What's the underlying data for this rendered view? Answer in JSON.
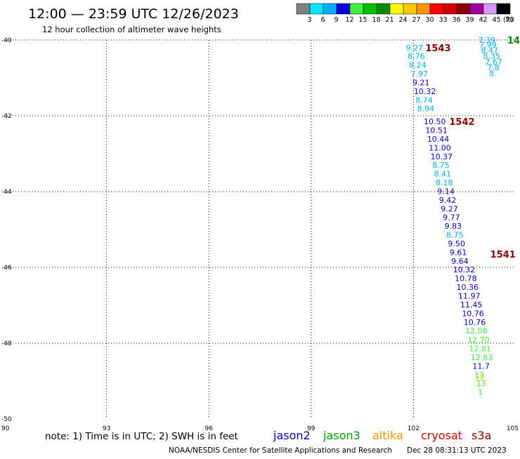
{
  "header": {
    "title": "12:00 — 23:59 UTC 12/26/2023",
    "subtitle": "12 hour collection of altimeter wave heights"
  },
  "colorbar": {
    "unit": "(ft)",
    "bins": [
      {
        "label": "3",
        "color": "#808080"
      },
      {
        "label": "6",
        "color": "#00e5ff"
      },
      {
        "label": "9",
        "color": "#00b0ff"
      },
      {
        "label": "12",
        "color": "#0000e0"
      },
      {
        "label": "15",
        "color": "#40f040"
      },
      {
        "label": "18",
        "color": "#00c000"
      },
      {
        "label": "21",
        "color": "#008c00"
      },
      {
        "label": "24",
        "color": "#f8f800"
      },
      {
        "label": "27",
        "color": "#ffc800"
      },
      {
        "label": "30",
        "color": "#ff9600"
      },
      {
        "label": "33",
        "color": "#ff0000"
      },
      {
        "label": "36",
        "color": "#d00000"
      },
      {
        "label": "39",
        "color": "#8c0000"
      },
      {
        "label": "42",
        "color": "#a000a0"
      },
      {
        "label": "45",
        "color": "#d896ff"
      },
      {
        "label": "70",
        "color": "#000000"
      }
    ]
  },
  "note": "note: 1) Time is in UTC; 2) SWH is in feet",
  "satellites": [
    {
      "name": "jason2",
      "color": "#0000cc"
    },
    {
      "name": "jason3",
      "color": "#00a000"
    },
    {
      "name": "altika",
      "color": "#ff9600"
    },
    {
      "name": "cryosat",
      "color": "#dd0000"
    },
    {
      "name": "s3a",
      "color": "#8c0000"
    }
  ],
  "footer": {
    "credit": "NOAA/NESDIS Center for Satellite Applications and Research",
    "timestamp": "Dec 28 08:31:13 UTC 2023"
  },
  "chart_data": {
    "type": "scatter",
    "xlim": [
      90,
      105
    ],
    "ylim": [
      -50,
      -40
    ],
    "x_ticks": [
      "90",
      "93",
      "96",
      "99",
      "102",
      "105"
    ],
    "y_ticks": [
      "-40",
      "-42",
      "-44",
      "-46",
      "-48",
      "-50"
    ],
    "grid": true,
    "time_labels": [
      {
        "text": "1543",
        "x": 102.35,
        "y": -40.2,
        "color": "#8c0000"
      },
      {
        "text": "1542",
        "x": 103.05,
        "y": -42.15,
        "color": "#8c0000"
      },
      {
        "text": "1541",
        "x": 104.25,
        "y": -45.65,
        "color": "#8c0000"
      },
      {
        "text": "14",
        "x": 104.75,
        "y": -40.0,
        "color": "#008c00"
      }
    ],
    "points": [
      {
        "text": "9.27",
        "x": 101.78,
        "y": -40.2,
        "color": "#00b0ff"
      },
      {
        "text": "8.76",
        "x": 101.83,
        "y": -40.43,
        "color": "#00b0ff"
      },
      {
        "text": "8.24",
        "x": 101.87,
        "y": -40.66,
        "color": "#00b0ff"
      },
      {
        "text": "7.97",
        "x": 101.92,
        "y": -40.89,
        "color": "#00b0ff"
      },
      {
        "text": "9.21",
        "x": 101.97,
        "y": -41.12,
        "color": "#0000e0"
      },
      {
        "text": "10.32",
        "x": 102.01,
        "y": -41.35,
        "color": "#0000e0"
      },
      {
        "text": "8.74",
        "x": 102.06,
        "y": -41.58,
        "color": "#00b0ff"
      },
      {
        "text": "8.94",
        "x": 102.11,
        "y": -41.81,
        "color": "#00b0ff"
      },
      {
        "text": "10.50",
        "x": 102.3,
        "y": -42.15,
        "color": "#0000e0"
      },
      {
        "text": "10.51",
        "x": 102.35,
        "y": -42.38,
        "color": "#0000e0"
      },
      {
        "text": "10.44",
        "x": 102.4,
        "y": -42.61,
        "color": "#0000e0"
      },
      {
        "text": "11.00",
        "x": 102.45,
        "y": -42.84,
        "color": "#0000e0"
      },
      {
        "text": "10.37",
        "x": 102.5,
        "y": -43.07,
        "color": "#0000e0"
      },
      {
        "text": "8.75",
        "x": 102.55,
        "y": -43.3,
        "color": "#00b0ff"
      },
      {
        "text": "8.41",
        "x": 102.6,
        "y": -43.53,
        "color": "#00b0ff"
      },
      {
        "text": "8.18",
        "x": 102.65,
        "y": -43.76,
        "color": "#00b0ff"
      },
      {
        "text": "9.14",
        "x": 102.7,
        "y": -43.99,
        "color": "#0000e0"
      },
      {
        "text": "9.42",
        "x": 102.75,
        "y": -44.22,
        "color": "#0000e0"
      },
      {
        "text": "9.27",
        "x": 102.8,
        "y": -44.45,
        "color": "#0000e0"
      },
      {
        "text": "9.77",
        "x": 102.86,
        "y": -44.68,
        "color": "#0000e0"
      },
      {
        "text": "9.83",
        "x": 102.91,
        "y": -44.91,
        "color": "#0000e0"
      },
      {
        "text": "8.75",
        "x": 102.96,
        "y": -45.14,
        "color": "#00b0ff"
      },
      {
        "text": "9.50",
        "x": 103.01,
        "y": -45.37,
        "color": "#0000e0"
      },
      {
        "text": "9.61",
        "x": 103.06,
        "y": -45.6,
        "color": "#0000e0"
      },
      {
        "text": "9.64",
        "x": 103.11,
        "y": -45.83,
        "color": "#0000e0"
      },
      {
        "text": "10.32",
        "x": 103.16,
        "y": -46.06,
        "color": "#0000e0"
      },
      {
        "text": "10.78",
        "x": 103.21,
        "y": -46.29,
        "color": "#0000e0"
      },
      {
        "text": "10.36",
        "x": 103.26,
        "y": -46.52,
        "color": "#0000e0"
      },
      {
        "text": "11.97",
        "x": 103.31,
        "y": -46.75,
        "color": "#0000e0"
      },
      {
        "text": "11.45",
        "x": 103.37,
        "y": -46.98,
        "color": "#0000e0"
      },
      {
        "text": "10.76",
        "x": 103.42,
        "y": -47.21,
        "color": "#0000e0"
      },
      {
        "text": "10.76",
        "x": 103.47,
        "y": -47.44,
        "color": "#0000e0"
      },
      {
        "text": "12.08",
        "x": 103.52,
        "y": -47.67,
        "color": "#40f040"
      },
      {
        "text": "12.70",
        "x": 103.58,
        "y": -47.91,
        "color": "#40f040"
      },
      {
        "text": "12.81",
        "x": 103.63,
        "y": -48.14,
        "color": "#40f040"
      },
      {
        "text": "12.63",
        "x": 103.68,
        "y": -48.37,
        "color": "#40f040"
      },
      {
        "text": "11.7",
        "x": 103.73,
        "y": -48.6,
        "color": "#0000e0"
      },
      {
        "text": "13",
        "x": 103.79,
        "y": -48.83,
        "color": "#40f040"
      },
      {
        "text": "12.",
        "x": 103.8,
        "y": -48.92,
        "color": "#ffc800"
      },
      {
        "text": "13",
        "x": 103.84,
        "y": -49.06,
        "color": "#40f040"
      },
      {
        "text": "1",
        "x": 103.89,
        "y": -49.29,
        "color": "#40f040"
      },
      {
        "text": "7.39",
        "x": 103.9,
        "y": -40.0,
        "color": "#00b0ff"
      },
      {
        "text": "7.99",
        "x": 103.93,
        "y": -40.12,
        "color": "#00b0ff"
      },
      {
        "text": "8.47",
        "x": 103.98,
        "y": -40.27,
        "color": "#00b0ff"
      },
      {
        "text": "8.35",
        "x": 104.04,
        "y": -40.42,
        "color": "#00b0ff"
      },
      {
        "text": "7.67",
        "x": 104.1,
        "y": -40.57,
        "color": "#00b0ff"
      },
      {
        "text": "7.8",
        "x": 104.16,
        "y": -40.72,
        "color": "#00b0ff"
      },
      {
        "text": "8.",
        "x": 104.22,
        "y": -40.88,
        "color": "#00b0ff"
      }
    ]
  }
}
